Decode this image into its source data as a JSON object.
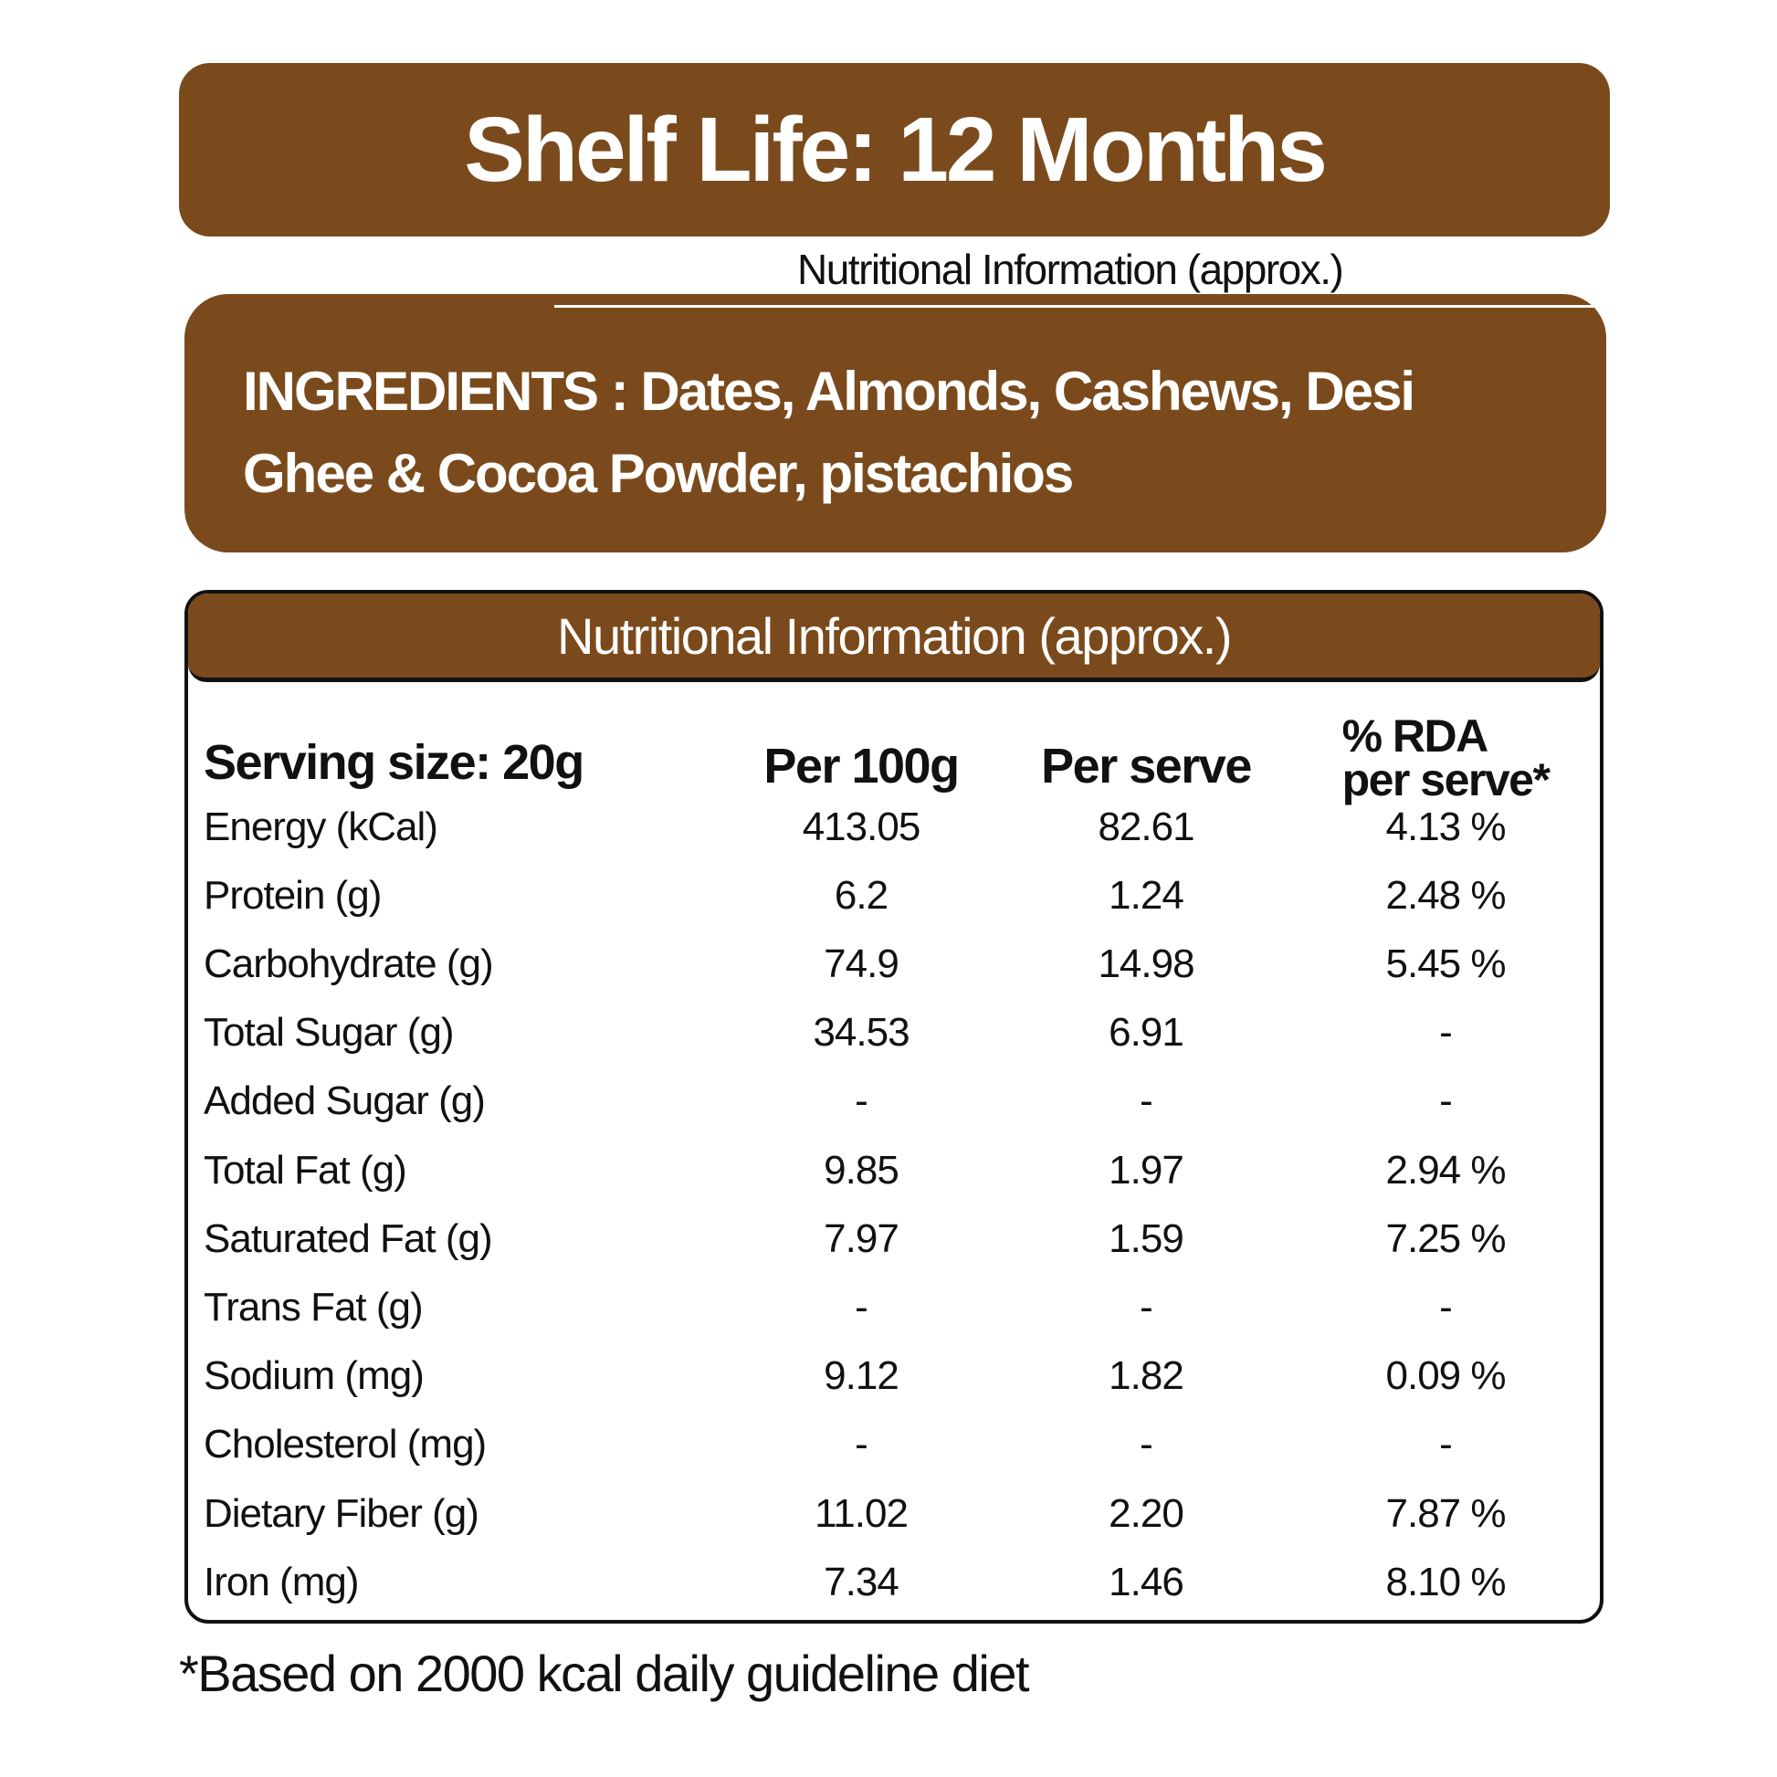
{
  "shelf_life": "Shelf Life: 12 Months",
  "subtitle": "Nutritional Information (approx.)",
  "ingredients": {
    "line1": "INGREDIENTS : Dates, Almonds, Cashews, Desi",
    "line2": "Ghee & Cocoa Powder, pistachios"
  },
  "nutrition": {
    "title": "Nutritional Information (approx.)",
    "serving": "Serving size: 20g",
    "headers": [
      "Per 100g",
      "Per serve",
      "% RDA",
      "per serve*"
    ],
    "rows": [
      [
        "Energy (kCal)",
        "413.05",
        "82.61",
        "4.13 %"
      ],
      [
        "Protein (g)",
        "6.2",
        "1.24",
        "2.48 %"
      ],
      [
        "Carbohydrate (g)",
        "74.9",
        "14.98",
        "5.45 %"
      ],
      [
        "Total Sugar (g)",
        "34.53",
        "6.91",
        "-"
      ],
      [
        "Added Sugar (g)",
        "-",
        "-",
        "-"
      ],
      [
        "Total Fat (g)",
        "9.85",
        "1.97",
        "2.94 %"
      ],
      [
        "Saturated Fat (g)",
        "7.97",
        "1.59",
        "7.25 %"
      ],
      [
        "Trans Fat (g)",
        "-",
        "-",
        "-"
      ],
      [
        "Sodium (mg)",
        "9.12",
        "1.82",
        "0.09 %"
      ],
      [
        "Cholesterol (mg)",
        "-",
        "-",
        "-"
      ],
      [
        "Dietary Fiber (g)",
        "11.02",
        "2.20",
        "7.87 %"
      ],
      [
        "Iron (mg)",
        "7.34",
        "1.46",
        "8.10 %"
      ]
    ]
  },
  "footnote": "*Based on 2000 kcal daily guideline diet",
  "colors": {
    "brand_brown": "#7a4a1c"
  }
}
